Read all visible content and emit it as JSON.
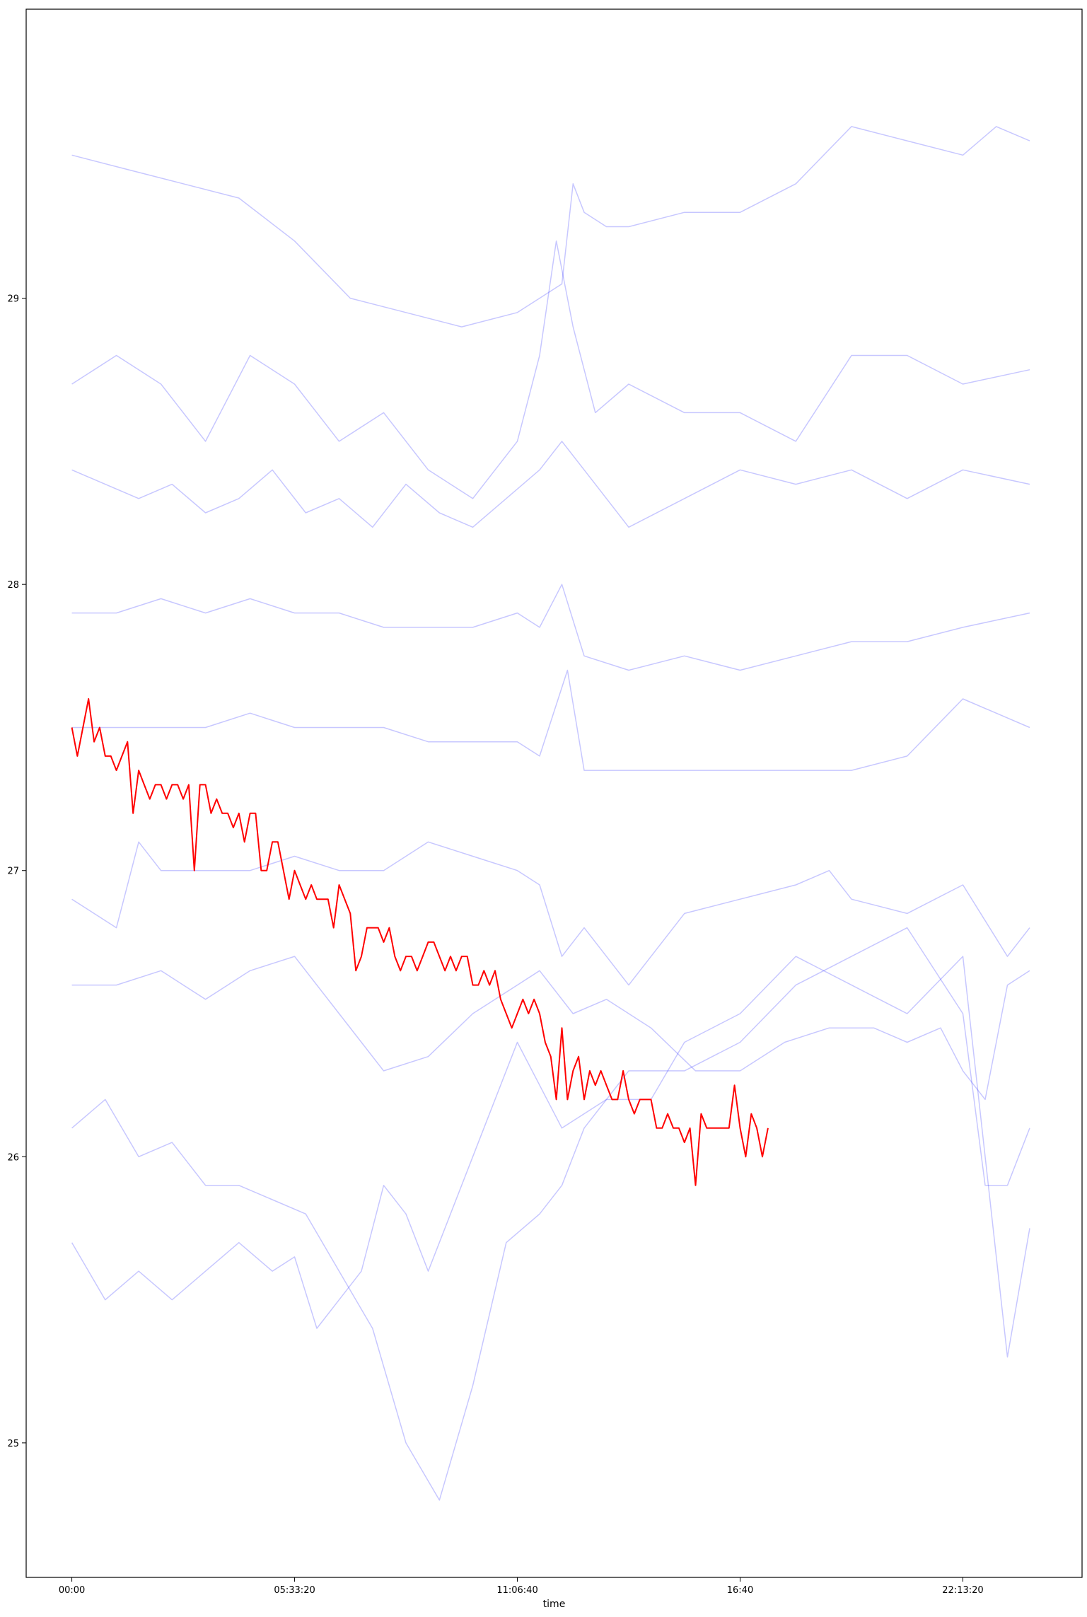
{
  "chart_data": {
    "type": "line",
    "title": "",
    "xlabel": "time",
    "ylabel": "",
    "x_ticks": [
      "00:00",
      "05:33:20",
      "11:06:40",
      "16:40",
      "22:13:20"
    ],
    "y_ticks": [
      "25",
      "26",
      "27",
      "28",
      "29"
    ],
    "x_tick_seconds": [
      0,
      20000,
      40000,
      60000,
      80000
    ],
    "xlim_seconds": [
      -4100,
      90700
    ],
    "ylim": [
      24.53,
      30.01
    ],
    "grid": false,
    "legend": "none",
    "colors": {
      "highlight": "#ff0000",
      "background": "#0000ff"
    },
    "highlight_series": {
      "x_seconds": [
        0,
        500,
        1000,
        1500,
        2000,
        2500,
        3000,
        3500,
        4000,
        4500,
        5000,
        5500,
        6000,
        6500,
        7000,
        7500,
        8000,
        8500,
        9000,
        9500,
        10000,
        10500,
        11000,
        11500,
        12000,
        12500,
        13000,
        13500,
        14000,
        14500,
        15000,
        15500,
        16000,
        16500,
        17000,
        17500,
        18000,
        18500,
        19000,
        19500,
        20000,
        20500,
        21000,
        21500,
        22000,
        22500,
        23000,
        23500,
        24000,
        24500,
        25000,
        25500,
        26000,
        26500,
        27000,
        27500,
        28000,
        28500,
        29000,
        29500,
        30000,
        30500,
        31000,
        31500,
        32000,
        32500,
        33000,
        33500,
        34000,
        34500,
        35000,
        35500,
        36000,
        36500,
        37000,
        37500,
        38000,
        38500,
        39000,
        39500,
        40000,
        40500,
        41000,
        41500,
        42000,
        42500,
        43000,
        43500,
        44000,
        44500,
        45000,
        45500,
        46000,
        46500,
        47000,
        47500,
        48000,
        48500,
        49000,
        49500,
        50000,
        50500,
        51000,
        51500,
        52000,
        52500,
        53000,
        53500,
        54000,
        54500,
        55000,
        55500,
        56000,
        56500,
        57000,
        57500,
        58000,
        58500,
        59000,
        59500,
        60000,
        60500,
        61000,
        61500,
        62000,
        62500
      ],
      "values": [
        27.5,
        27.4,
        27.5,
        27.6,
        27.45,
        27.5,
        27.4,
        27.4,
        27.35,
        27.4,
        27.45,
        27.2,
        27.35,
        27.3,
        27.25,
        27.3,
        27.3,
        27.25,
        27.3,
        27.3,
        27.25,
        27.3,
        27.0,
        27.3,
        27.3,
        27.2,
        27.25,
        27.2,
        27.2,
        27.15,
        27.2,
        27.1,
        27.2,
        27.2,
        27.0,
        27.0,
        27.1,
        27.1,
        27.0,
        26.9,
        27.0,
        26.95,
        26.9,
        26.95,
        26.9,
        26.9,
        26.9,
        26.8,
        26.95,
        26.9,
        26.85,
        26.65,
        26.7,
        26.8,
        26.8,
        26.8,
        26.75,
        26.8,
        26.7,
        26.65,
        26.7,
        26.7,
        26.65,
        26.7,
        26.75,
        26.75,
        26.7,
        26.65,
        26.7,
        26.65,
        26.7,
        26.7,
        26.6,
        26.6,
        26.65,
        26.6,
        26.65,
        26.55,
        26.5,
        26.45,
        26.5,
        26.55,
        26.5,
        26.55,
        26.5,
        26.4,
        26.35,
        26.2,
        26.45,
        26.2,
        26.3,
        26.35,
        26.2,
        26.3,
        26.25,
        26.3,
        26.25,
        26.2,
        26.2,
        26.3,
        26.2,
        26.15,
        26.2,
        26.2,
        26.2,
        26.1,
        26.1,
        26.15,
        26.1,
        26.1,
        26.05,
        26.1,
        25.9,
        26.15,
        26.1,
        26.1,
        26.1,
        26.1,
        26.1,
        26.25,
        26.1,
        26.0,
        26.15,
        26.1,
        26.0,
        26.1
      ]
    },
    "background_series": [
      {
        "x_seconds": [
          0,
          5000,
          10000,
          15000,
          20000,
          25000,
          30000,
          35000,
          40000,
          44000,
          45000,
          46000,
          48000,
          50000,
          55000,
          60000,
          65000,
          70000,
          75000,
          80000,
          83000,
          86000
        ],
        "values": [
          29.5,
          29.45,
          29.4,
          29.35,
          29.2,
          29.0,
          28.95,
          28.9,
          28.95,
          29.05,
          29.4,
          29.3,
          29.25,
          29.25,
          29.3,
          29.3,
          29.4,
          29.6,
          29.55,
          29.5,
          29.6,
          29.55
        ]
      },
      {
        "x_seconds": [
          0,
          4000,
          8000,
          12000,
          16000,
          20000,
          24000,
          28000,
          32000,
          36000,
          40000,
          42000,
          43500,
          45000,
          47000,
          50000,
          55000,
          60000,
          65000,
          70000,
          75000,
          80000,
          86000
        ],
        "values": [
          28.7,
          28.8,
          28.7,
          28.5,
          28.8,
          28.7,
          28.5,
          28.6,
          28.4,
          28.3,
          28.5,
          28.8,
          29.2,
          28.9,
          28.6,
          28.7,
          28.6,
          28.6,
          28.5,
          28.8,
          28.8,
          28.7,
          28.75
        ]
      },
      {
        "x_seconds": [
          0,
          3000,
          6000,
          9000,
          12000,
          15000,
          18000,
          21000,
          24000,
          27000,
          30000,
          33000,
          36000,
          39000,
          42000,
          44000,
          47000,
          50000,
          55000,
          60000,
          65000,
          70000,
          75000,
          80000,
          86000
        ],
        "values": [
          28.4,
          28.35,
          28.3,
          28.35,
          28.25,
          28.3,
          28.4,
          28.25,
          28.3,
          28.2,
          28.35,
          28.25,
          28.2,
          28.3,
          28.4,
          28.5,
          28.35,
          28.2,
          28.3,
          28.4,
          28.35,
          28.4,
          28.3,
          28.4,
          28.35
        ]
      },
      {
        "x_seconds": [
          0,
          4000,
          8000,
          12000,
          16000,
          20000,
          24000,
          28000,
          32000,
          36000,
          40000,
          42000,
          44000,
          46000,
          50000,
          55000,
          60000,
          65000,
          70000,
          75000,
          80000,
          86000
        ],
        "values": [
          27.9,
          27.9,
          27.95,
          27.9,
          27.95,
          27.9,
          27.9,
          27.85,
          27.85,
          27.85,
          27.9,
          27.85,
          28.0,
          27.75,
          27.7,
          27.75,
          27.7,
          27.75,
          27.8,
          27.8,
          27.85,
          27.9
        ]
      },
      {
        "x_seconds": [
          0,
          4000,
          8000,
          12000,
          16000,
          20000,
          24000,
          28000,
          32000,
          36000,
          40000,
          42000,
          44500,
          46000,
          50000,
          55000,
          60000,
          65000,
          70000,
          75000,
          80000,
          86000
        ],
        "values": [
          27.5,
          27.5,
          27.5,
          27.5,
          27.55,
          27.5,
          27.5,
          27.5,
          27.45,
          27.45,
          27.45,
          27.4,
          27.7,
          27.35,
          27.35,
          27.35,
          27.35,
          27.35,
          27.35,
          27.4,
          27.6,
          27.5
        ]
      },
      {
        "x_seconds": [
          0,
          4000,
          6000,
          8000,
          12000,
          16000,
          20000,
          24000,
          28000,
          32000,
          36000,
          40000,
          42000,
          44000,
          46000,
          50000,
          55000,
          60000,
          65000,
          68000,
          70000,
          75000,
          80000,
          84000,
          86000
        ],
        "values": [
          26.9,
          26.8,
          27.1,
          27.0,
          27.0,
          27.0,
          27.05,
          27.0,
          27.0,
          27.1,
          27.05,
          27.0,
          26.95,
          26.7,
          26.8,
          26.6,
          26.85,
          26.9,
          26.95,
          27.0,
          26.9,
          26.85,
          26.95,
          26.7,
          26.8
        ]
      },
      {
        "x_seconds": [
          0,
          4000,
          8000,
          12000,
          16000,
          20000,
          24000,
          28000,
          32000,
          36000,
          40000,
          42000,
          45000,
          48000,
          52000,
          56000,
          60000,
          64000,
          68000,
          70000,
          72000,
          75000,
          78000,
          80000,
          82000,
          84000,
          86000
        ],
        "values": [
          26.6,
          26.6,
          26.65,
          26.55,
          26.65,
          26.7,
          26.5,
          26.3,
          26.35,
          26.5,
          26.6,
          26.65,
          26.5,
          26.55,
          26.45,
          26.3,
          26.3,
          26.4,
          26.45,
          26.45,
          26.45,
          26.4,
          26.45,
          26.3,
          26.2,
          26.6,
          26.65
        ]
      },
      {
        "x_seconds": [
          0,
          3000,
          6000,
          9000,
          12000,
          15000,
          18000,
          21000,
          24000,
          27000,
          30000,
          33000,
          36000,
          39000,
          42000,
          44000,
          46000,
          48000,
          50000,
          52000,
          55000,
          60000,
          65000,
          70000,
          75000,
          80000,
          82000,
          84000,
          86000
        ],
        "values": [
          26.1,
          26.2,
          26.0,
          26.05,
          25.9,
          25.9,
          25.85,
          25.8,
          25.6,
          25.4,
          25.0,
          24.8,
          25.2,
          25.7,
          25.8,
          25.9,
          26.1,
          26.2,
          26.3,
          26.3,
          26.3,
          26.4,
          26.6,
          26.7,
          26.8,
          26.5,
          25.9,
          25.9,
          26.1
        ]
      },
      {
        "x_seconds": [
          0,
          3000,
          6000,
          9000,
          12000,
          15000,
          18000,
          20000,
          22000,
          24000,
          26000,
          28000,
          30000,
          32000,
          36000,
          40000,
          44000,
          48000,
          52000,
          55000,
          60000,
          65000,
          70000,
          75000,
          80000,
          84000,
          86000
        ],
        "values": [
          25.7,
          25.5,
          25.6,
          25.5,
          25.6,
          25.7,
          25.6,
          25.65,
          25.4,
          25.5,
          25.6,
          25.9,
          25.8,
          25.6,
          26.0,
          26.4,
          26.1,
          26.2,
          26.2,
          26.4,
          26.5,
          26.7,
          26.6,
          26.5,
          26.7,
          25.3,
          25.75
        ]
      }
    ]
  }
}
